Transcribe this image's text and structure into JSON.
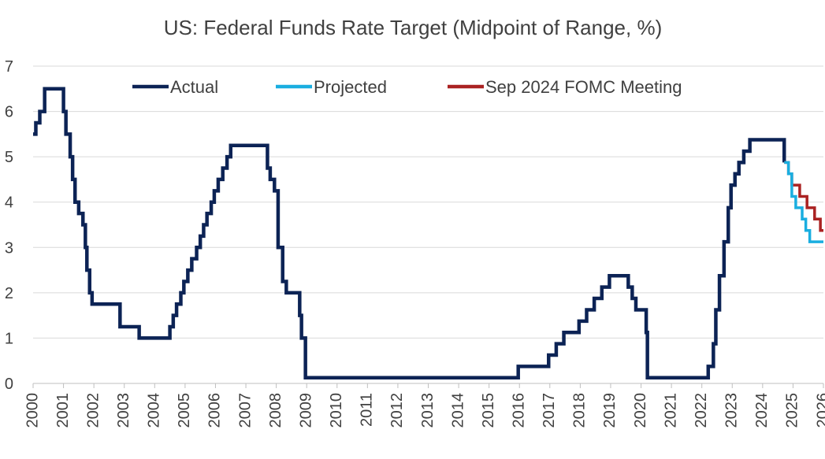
{
  "chart_data": {
    "type": "line",
    "title": "US: Federal Funds Rate Target (Midpoint of Range, %)",
    "xlabel": "",
    "ylabel": "",
    "xlim": [
      2000,
      2026
    ],
    "ylim": [
      0,
      7
    ],
    "yticks": [
      0,
      1,
      2,
      3,
      4,
      5,
      6,
      7
    ],
    "xticks": [
      "2000",
      "2001",
      "2002",
      "2003",
      "2004",
      "2005",
      "2006",
      "2007",
      "2008",
      "2009",
      "2010",
      "2011",
      "2012",
      "2013",
      "2014",
      "2015",
      "2016",
      "2017",
      "2018",
      "2019",
      "2020",
      "2021",
      "2022",
      "2023",
      "2024",
      "2025",
      "2026"
    ],
    "grid": "horizontal",
    "legend_position": "top",
    "step": true,
    "series": [
      {
        "name": "Actual",
        "color": "#0c2355",
        "points": [
          [
            2000.0,
            5.5
          ],
          [
            2000.09,
            5.75
          ],
          [
            2000.22,
            6.0
          ],
          [
            2000.38,
            6.5
          ],
          [
            2001.0,
            6.0
          ],
          [
            2001.08,
            5.5
          ],
          [
            2001.22,
            5.0
          ],
          [
            2001.3,
            4.5
          ],
          [
            2001.38,
            4.0
          ],
          [
            2001.5,
            3.75
          ],
          [
            2001.64,
            3.5
          ],
          [
            2001.72,
            3.0
          ],
          [
            2001.77,
            2.5
          ],
          [
            2001.86,
            2.0
          ],
          [
            2001.94,
            1.75
          ],
          [
            2002.86,
            1.25
          ],
          [
            2003.49,
            1.0
          ],
          [
            2004.5,
            1.25
          ],
          [
            2004.61,
            1.5
          ],
          [
            2004.72,
            1.75
          ],
          [
            2004.86,
            2.0
          ],
          [
            2004.96,
            2.25
          ],
          [
            2005.09,
            2.5
          ],
          [
            2005.22,
            2.75
          ],
          [
            2005.38,
            3.0
          ],
          [
            2005.5,
            3.25
          ],
          [
            2005.61,
            3.5
          ],
          [
            2005.72,
            3.75
          ],
          [
            2005.86,
            4.0
          ],
          [
            2005.96,
            4.25
          ],
          [
            2006.09,
            4.5
          ],
          [
            2006.24,
            4.75
          ],
          [
            2006.38,
            5.0
          ],
          [
            2006.5,
            5.25
          ],
          [
            2007.71,
            4.75
          ],
          [
            2007.8,
            4.5
          ],
          [
            2007.94,
            4.25
          ],
          [
            2008.06,
            3.0
          ],
          [
            2008.21,
            2.25
          ],
          [
            2008.33,
            2.0
          ],
          [
            2008.77,
            1.5
          ],
          [
            2008.83,
            1.0
          ],
          [
            2008.96,
            0.125
          ],
          [
            2015.96,
            0.375
          ],
          [
            2016.96,
            0.625
          ],
          [
            2017.21,
            0.875
          ],
          [
            2017.46,
            1.125
          ],
          [
            2017.96,
            1.375
          ],
          [
            2018.21,
            1.625
          ],
          [
            2018.46,
            1.875
          ],
          [
            2018.71,
            2.125
          ],
          [
            2018.96,
            2.375
          ],
          [
            2019.58,
            2.125
          ],
          [
            2019.71,
            1.875
          ],
          [
            2019.83,
            1.625
          ],
          [
            2020.17,
            1.125
          ],
          [
            2020.21,
            0.125
          ],
          [
            2022.21,
            0.375
          ],
          [
            2022.38,
            0.875
          ],
          [
            2022.46,
            1.625
          ],
          [
            2022.58,
            2.375
          ],
          [
            2022.73,
            3.125
          ],
          [
            2022.87,
            3.875
          ],
          [
            2022.96,
            4.375
          ],
          [
            2023.09,
            4.625
          ],
          [
            2023.22,
            4.875
          ],
          [
            2023.38,
            5.125
          ],
          [
            2023.58,
            5.375
          ],
          [
            2024.71,
            4.875
          ]
        ]
      },
      {
        "name": "Projected",
        "color": "#1aaee0",
        "points": [
          [
            2024.71,
            4.875
          ],
          [
            2024.85,
            4.625
          ],
          [
            2024.96,
            4.125
          ],
          [
            2025.09,
            3.875
          ],
          [
            2025.3,
            3.625
          ],
          [
            2025.42,
            3.375
          ],
          [
            2025.55,
            3.125
          ],
          [
            2026.0,
            3.125
          ]
        ]
      },
      {
        "name": "Sep 2024 FOMC Meeting",
        "color": "#aa2222",
        "points": [
          [
            2024.71,
            4.875
          ],
          [
            2024.85,
            4.625
          ],
          [
            2024.96,
            4.375
          ],
          [
            2025.22,
            4.125
          ],
          [
            2025.46,
            3.875
          ],
          [
            2025.71,
            3.625
          ],
          [
            2025.9,
            3.375
          ],
          [
            2026.0,
            3.375
          ]
        ]
      }
    ]
  }
}
